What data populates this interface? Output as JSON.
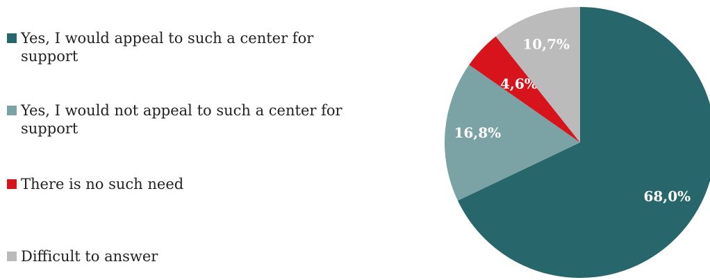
{
  "chart_data": {
    "type": "pie",
    "categories": [
      "Yes, I would appeal to such a center for support",
      "Yes, I would not appeal to such a center for support",
      "There is no such need",
      "Difficult to answer"
    ],
    "values": [
      68.0,
      16.8,
      4.6,
      10.7
    ],
    "value_labels": [
      "68,0%",
      "16,8%",
      "4,6%",
      "10,7%"
    ],
    "colors": [
      "#27666b",
      "#7ba3a6",
      "#d7141c",
      "#bcbbbc"
    ],
    "legend": "left"
  }
}
